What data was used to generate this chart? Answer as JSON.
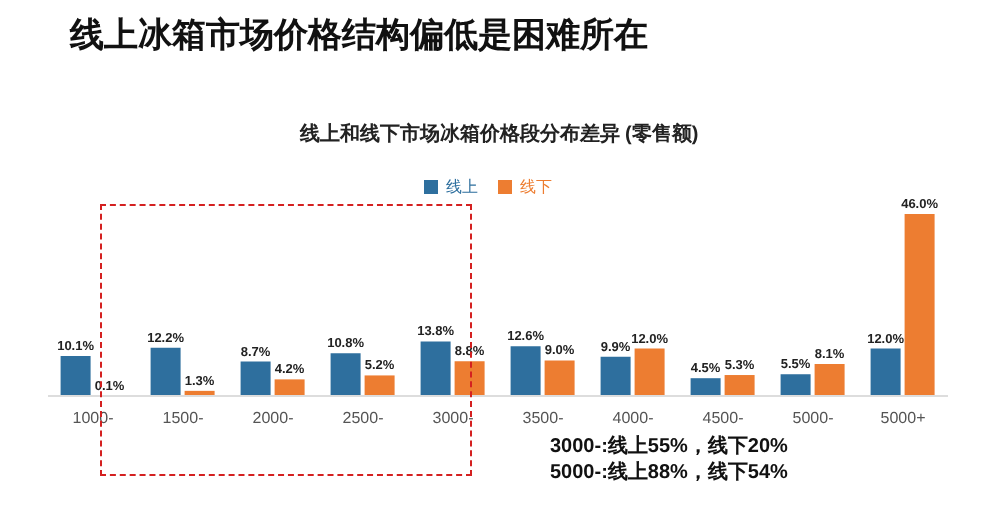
{
  "chart_data": {
    "type": "bar",
    "title": "线上冰箱市场价格结构偏低是困难所在",
    "subtitle": "线上和线下市场冰箱价格段分布差异 (零售额)",
    "categories": [
      "1000-",
      "1500-",
      "2000-",
      "2500-",
      "3000-",
      "3500-",
      "4000-",
      "4500-",
      "5000-",
      "5000+"
    ],
    "series": [
      {
        "name": "线上",
        "color": "#2e6f9e",
        "values": [
          10.1,
          12.2,
          8.7,
          10.8,
          13.8,
          12.6,
          9.9,
          4.5,
          5.5,
          12.0
        ],
        "value_labels": [
          "10.1%",
          "12.2%",
          "8.7%",
          "10.8%",
          "13.8%",
          "12.6%",
          "9.9%",
          "4.5%",
          "5.5%",
          "12.0%"
        ]
      },
      {
        "name": "线下",
        "color": "#ed7d31",
        "values": [
          0.1,
          1.3,
          4.2,
          5.2,
          8.8,
          9.0,
          12.0,
          5.3,
          8.1,
          46.0
        ],
        "value_labels": [
          "0.1%",
          "1.3%",
          "4.2%",
          "5.2%",
          "8.8%",
          "9.0%",
          "12.0%",
          "5.3%",
          "8.1%",
          "46.0%"
        ]
      }
    ],
    "legend": "top",
    "grid": false,
    "annotations": [
      "3000-:线上55%，线下20%",
      "5000-:线上88%，线下54%"
    ]
  }
}
